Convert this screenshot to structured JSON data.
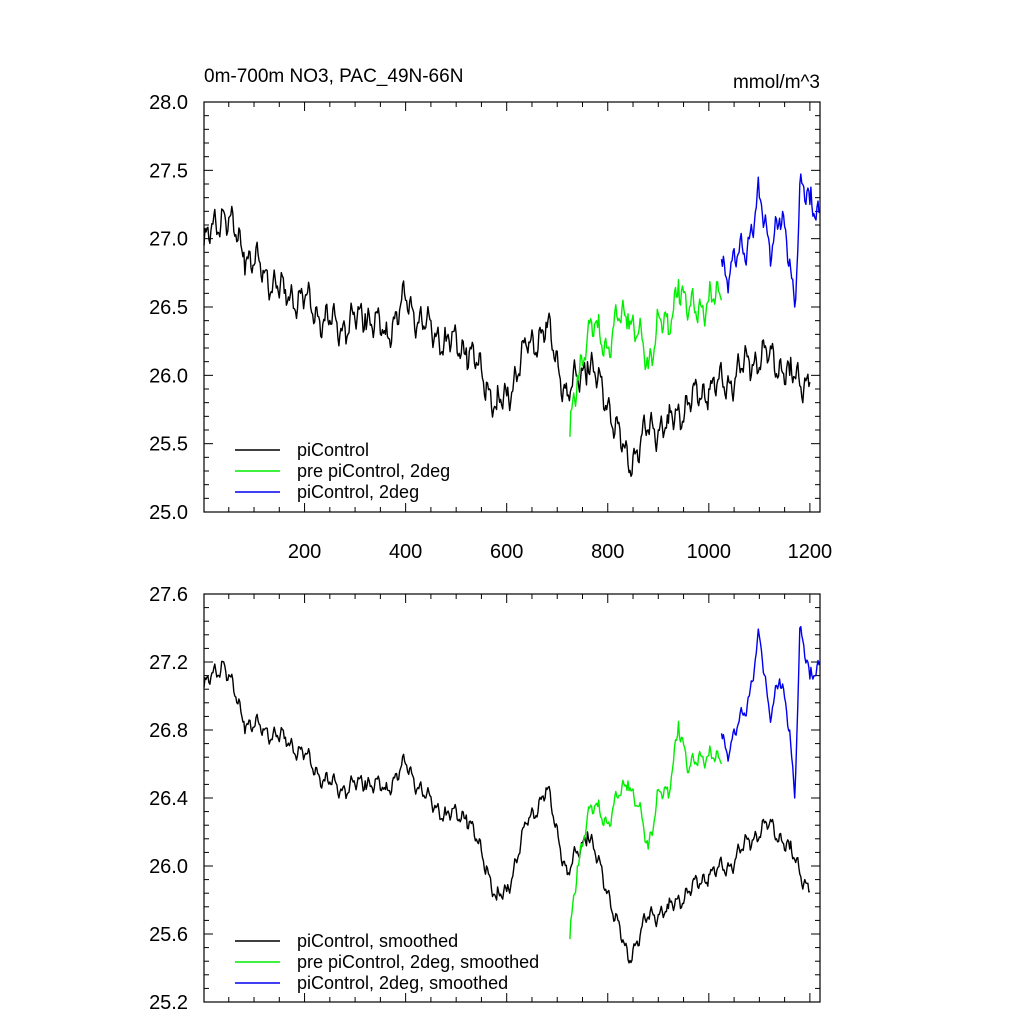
{
  "chart_data": [
    {
      "type": "line",
      "title": "0m-700m NO3, PAC_49N-66N",
      "units": "mmol/m^3",
      "xlim": [
        1,
        1220
      ],
      "xticks": [
        200,
        400,
        600,
        800,
        1000,
        1200
      ],
      "xtick_labels": [
        "200",
        "400",
        "600",
        "800",
        "1000",
        "1200"
      ],
      "ylim": [
        25.0,
        28.0
      ],
      "yticks": [
        25.0,
        25.5,
        26.0,
        26.5,
        27.0,
        27.5,
        28.0
      ],
      "ytick_labels": [
        "25.0",
        "25.5",
        "26.0",
        "26.5",
        "27.0",
        "27.5",
        "28.0"
      ],
      "legend_position": "bottom-left",
      "series": [
        {
          "name": "piControl",
          "color": "#000000",
          "x": [
            1,
            40,
            80,
            120,
            160,
            200,
            240,
            280,
            320,
            360,
            400,
            440,
            480,
            520,
            560,
            580,
            600,
            640,
            680,
            720,
            760,
            800,
            840,
            880,
            920,
            960,
            1000,
            1040,
            1080,
            1120,
            1160,
            1200
          ],
          "values": [
            26.95,
            27.2,
            26.9,
            26.75,
            26.6,
            26.55,
            26.4,
            26.35,
            26.45,
            26.3,
            26.55,
            26.35,
            26.25,
            26.2,
            25.95,
            25.75,
            25.85,
            26.2,
            26.35,
            25.85,
            26.1,
            25.8,
            25.35,
            25.6,
            25.65,
            25.8,
            25.9,
            25.95,
            26.1,
            26.15,
            26.0,
            25.95
          ]
        },
        {
          "name": "pre piControl, 2deg",
          "color": "#00ee00",
          "x": [
            725,
            740,
            760,
            780,
            800,
            820,
            840,
            860,
            880,
            900,
            920,
            940,
            960,
            980,
            1000,
            1025
          ],
          "values": [
            25.55,
            26.0,
            26.3,
            26.35,
            26.2,
            26.4,
            26.45,
            26.3,
            26.05,
            26.45,
            26.3,
            26.7,
            26.45,
            26.5,
            26.55,
            26.55
          ]
        },
        {
          "name": "piControl, 2deg",
          "color": "#0000ee",
          "x": [
            1025,
            1040,
            1060,
            1080,
            1100,
            1120,
            1140,
            1160,
            1170,
            1180,
            1200,
            1220
          ],
          "values": [
            26.85,
            26.7,
            26.9,
            27.0,
            27.3,
            26.95,
            27.15,
            26.85,
            26.5,
            27.4,
            27.25,
            27.2
          ]
        }
      ]
    },
    {
      "type": "line",
      "xlim": [
        1,
        1220
      ],
      "xticks": [
        200,
        400,
        600,
        800,
        1000,
        1200
      ],
      "ylim": [
        25.2,
        27.6
      ],
      "yticks": [
        25.2,
        25.6,
        26.0,
        26.4,
        26.8,
        27.2,
        27.6
      ],
      "ytick_labels": [
        "25.2",
        "25.6",
        "26.0",
        "26.4",
        "26.8",
        "27.2",
        "27.6"
      ],
      "legend_position": "bottom-left",
      "series": [
        {
          "name": "piControl, smoothed",
          "color": "#000000",
          "x": [
            1,
            40,
            80,
            120,
            160,
            200,
            240,
            280,
            320,
            360,
            400,
            440,
            480,
            520,
            560,
            580,
            600,
            640,
            680,
            720,
            760,
            800,
            840,
            880,
            920,
            960,
            1000,
            1040,
            1080,
            1120,
            1160,
            1200
          ],
          "values": [
            27.05,
            27.2,
            26.85,
            26.8,
            26.75,
            26.65,
            26.5,
            26.45,
            26.5,
            26.45,
            26.6,
            26.4,
            26.3,
            26.3,
            26.0,
            25.8,
            25.85,
            26.25,
            26.45,
            25.95,
            26.2,
            25.85,
            25.45,
            25.7,
            25.75,
            25.85,
            25.95,
            26.0,
            26.15,
            26.25,
            26.1,
            25.85
          ]
        },
        {
          "name": "pre piControl, 2deg, smoothed",
          "color": "#00ee00",
          "x": [
            725,
            740,
            760,
            780,
            800,
            820,
            840,
            860,
            880,
            900,
            920,
            940,
            960,
            980,
            1000,
            1025
          ],
          "values": [
            25.57,
            26.0,
            26.3,
            26.35,
            26.25,
            26.4,
            26.5,
            26.35,
            26.1,
            26.45,
            26.4,
            26.85,
            26.55,
            26.65,
            26.65,
            26.6
          ]
        },
        {
          "name": "piControl, 2deg, smoothed",
          "color": "#0000ee",
          "x": [
            1025,
            1040,
            1060,
            1080,
            1100,
            1120,
            1140,
            1160,
            1170,
            1180,
            1200,
            1220
          ],
          "values": [
            26.78,
            26.65,
            26.85,
            27.0,
            27.35,
            26.9,
            27.1,
            26.8,
            26.4,
            27.4,
            27.1,
            27.2
          ]
        }
      ]
    }
  ]
}
